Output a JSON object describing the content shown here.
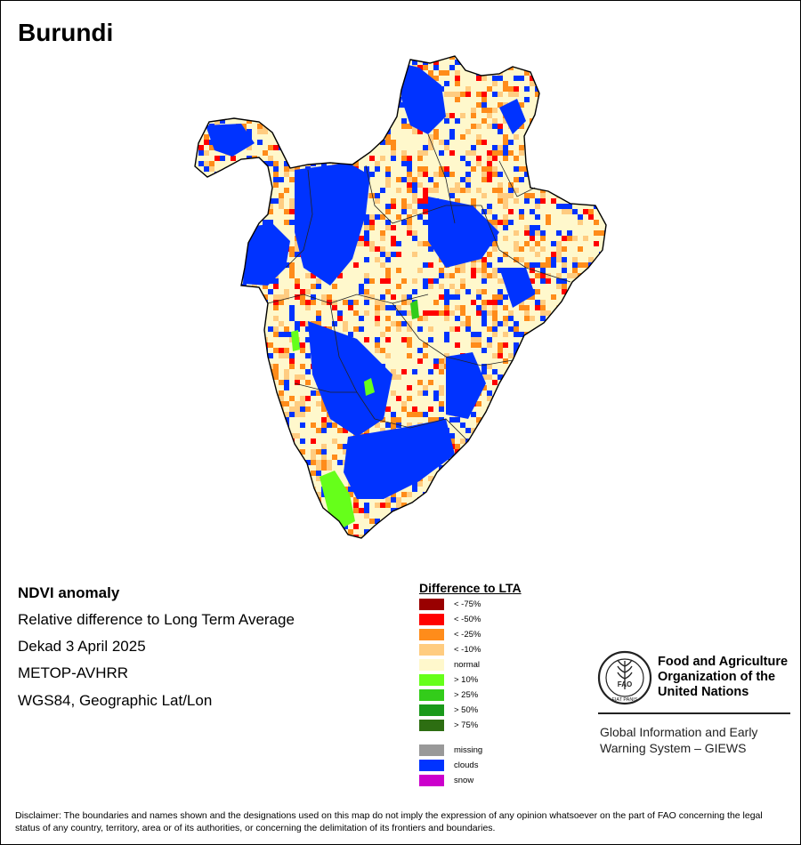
{
  "title": "Burundi",
  "info": {
    "title": "NDVI anomaly",
    "line1": "Relative difference to Long Term Average",
    "line2": "Dekad 3 April 2025",
    "line3": "METOP-AVHRR",
    "line4": "WGS84, Geographic Lat/Lon"
  },
  "legend": {
    "title": "Difference to LTA",
    "items": [
      {
        "label": "< -75%",
        "color": "#990000"
      },
      {
        "label": "< -50%",
        "color": "#ff0000"
      },
      {
        "label": "< -25%",
        "color": "#ff8c1a"
      },
      {
        "label": "< -10%",
        "color": "#ffcc80"
      },
      {
        "label": "normal",
        "color": "#fff8cc"
      },
      {
        "label": "> 10%",
        "color": "#66ff1a"
      },
      {
        "label": "> 25%",
        "color": "#33cc1a"
      },
      {
        "label": "> 50%",
        "color": "#1a991a"
      },
      {
        "label": "> 75%",
        "color": "#2d6e12"
      },
      {
        "label": "missing",
        "color": "#999999"
      },
      {
        "label": "clouds",
        "color": "#0033ff"
      },
      {
        "label": "snow",
        "color": "#cc00cc"
      }
    ]
  },
  "org": {
    "line1": "Food and Agriculture",
    "line2": "Organization of the",
    "line3": "United Nations",
    "logo_text": "FAO",
    "logo_motto": "FIAT PANIS"
  },
  "giews": {
    "line1": "Global Information and Early",
    "line2": "Warning System – GIEWS"
  },
  "disclaimer": "Disclaimer: The boundaries and names shown and the designations used on this map do not imply the expression of any opinion whatsoever on the part of FAO concerning the legal status of any country, territory, area or of its authorities, or concerning the delimitation of its frontiers and boundaries."
}
